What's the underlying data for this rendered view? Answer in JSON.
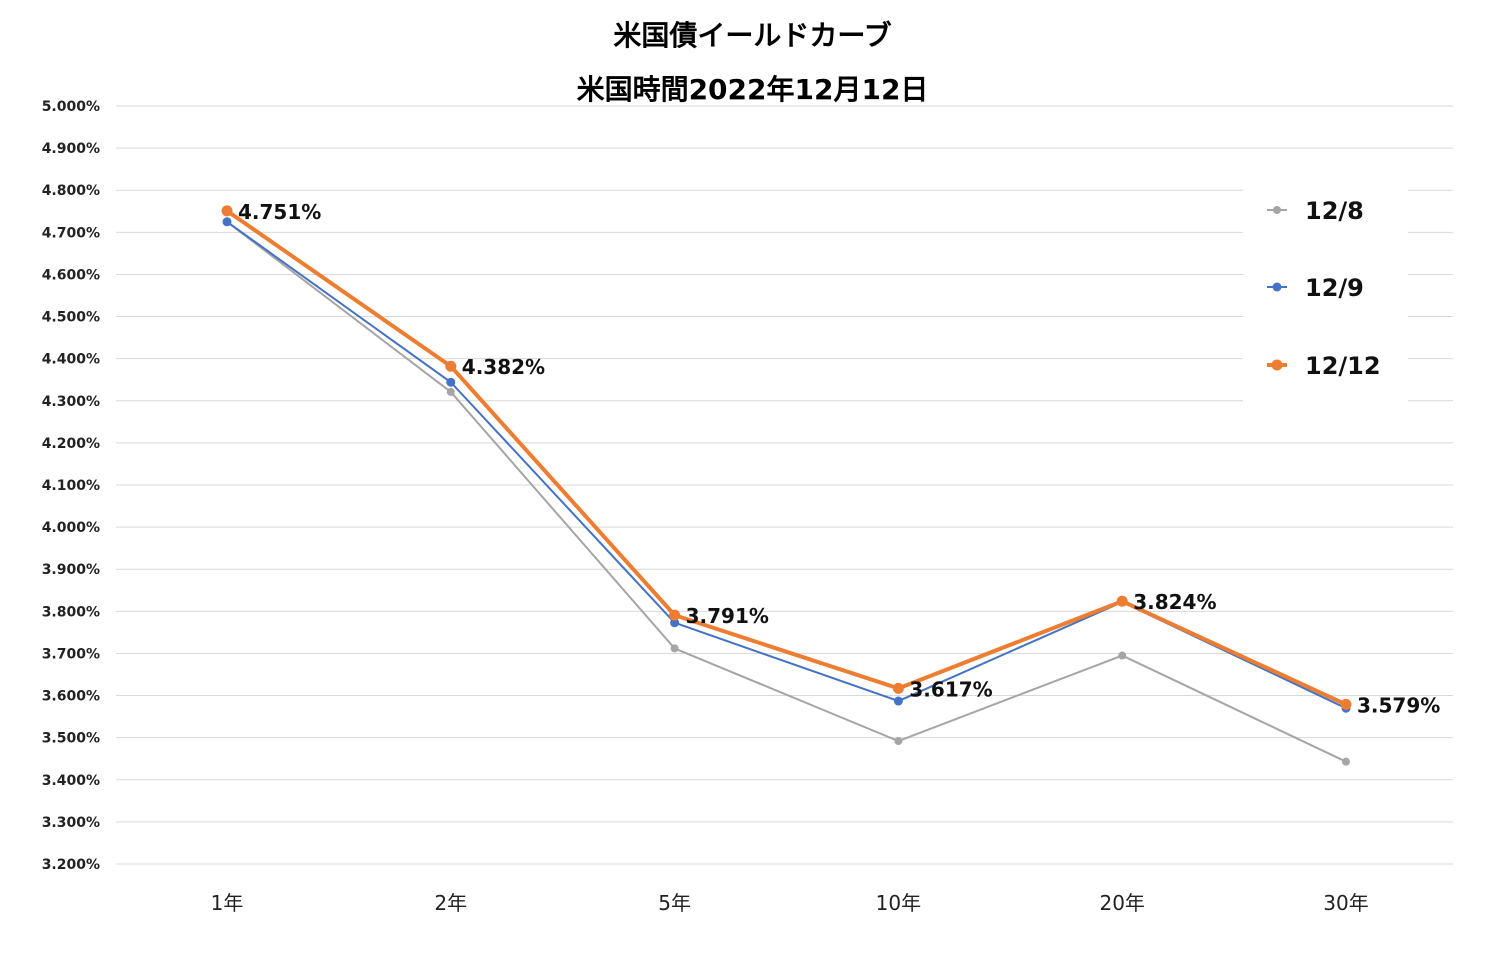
{
  "title": "米国債イールドカーブ",
  "subtitle": "米国時間2022年12月12日",
  "chart_data": {
    "type": "line",
    "title": "米国債イールドカーブ",
    "subtitle": "米国時間2022年12月12日",
    "categories": [
      "1年",
      "2年",
      "5年",
      "10年",
      "20年",
      "30年"
    ],
    "ylim": [
      3.2,
      5.0
    ],
    "ystep": 0.1,
    "ytick_format": "%.3f%%",
    "grid": true,
    "legend_position": "right",
    "series": [
      {
        "name": "12/8",
        "color": "#A5A5A5",
        "values": [
          4.725,
          4.321,
          3.712,
          3.492,
          3.695,
          3.443
        ]
      },
      {
        "name": "12/9",
        "color": "#4472C4",
        "values": [
          4.725,
          4.344,
          3.773,
          3.587,
          3.822,
          3.57
        ]
      },
      {
        "name": "12/12",
        "color": "#ED7D31",
        "values": [
          4.751,
          4.382,
          3.791,
          3.617,
          3.824,
          3.579
        ],
        "data_labels": [
          "4.751%",
          "4.382%",
          "3.791%",
          "3.617%",
          "3.824%",
          "3.579%"
        ]
      }
    ]
  }
}
